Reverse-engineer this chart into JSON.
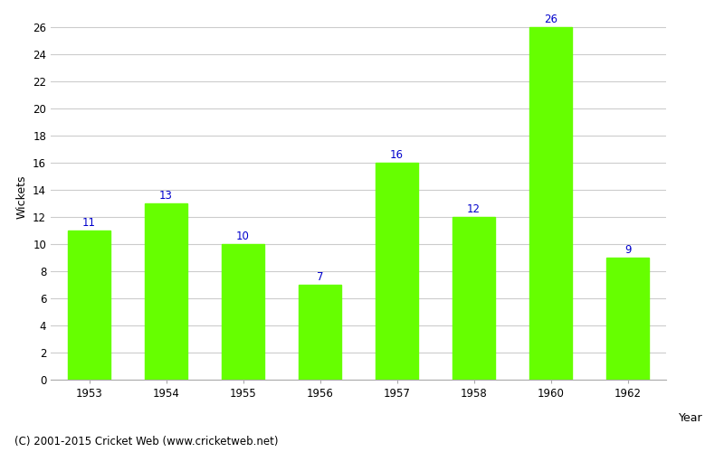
{
  "years": [
    "1953",
    "1954",
    "1955",
    "1956",
    "1957",
    "1958",
    "1960",
    "1962"
  ],
  "wickets": [
    11,
    13,
    10,
    7,
    16,
    12,
    26,
    9
  ],
  "bar_color": "#66ff00",
  "label_color": "#0000cc",
  "ylabel": "Wickets",
  "xlabel": "Year",
  "ylim": [
    0,
    27
  ],
  "yticks": [
    0,
    2,
    4,
    6,
    8,
    10,
    12,
    14,
    16,
    18,
    20,
    22,
    24,
    26
  ],
  "footnote": "(C) 2001-2015 Cricket Web (www.cricketweb.net)",
  "label_fontsize": 8.5,
  "axis_label_fontsize": 9,
  "footnote_fontsize": 8.5,
  "background_color": "#ffffff",
  "grid_color": "#cccccc",
  "bar_width": 0.55
}
